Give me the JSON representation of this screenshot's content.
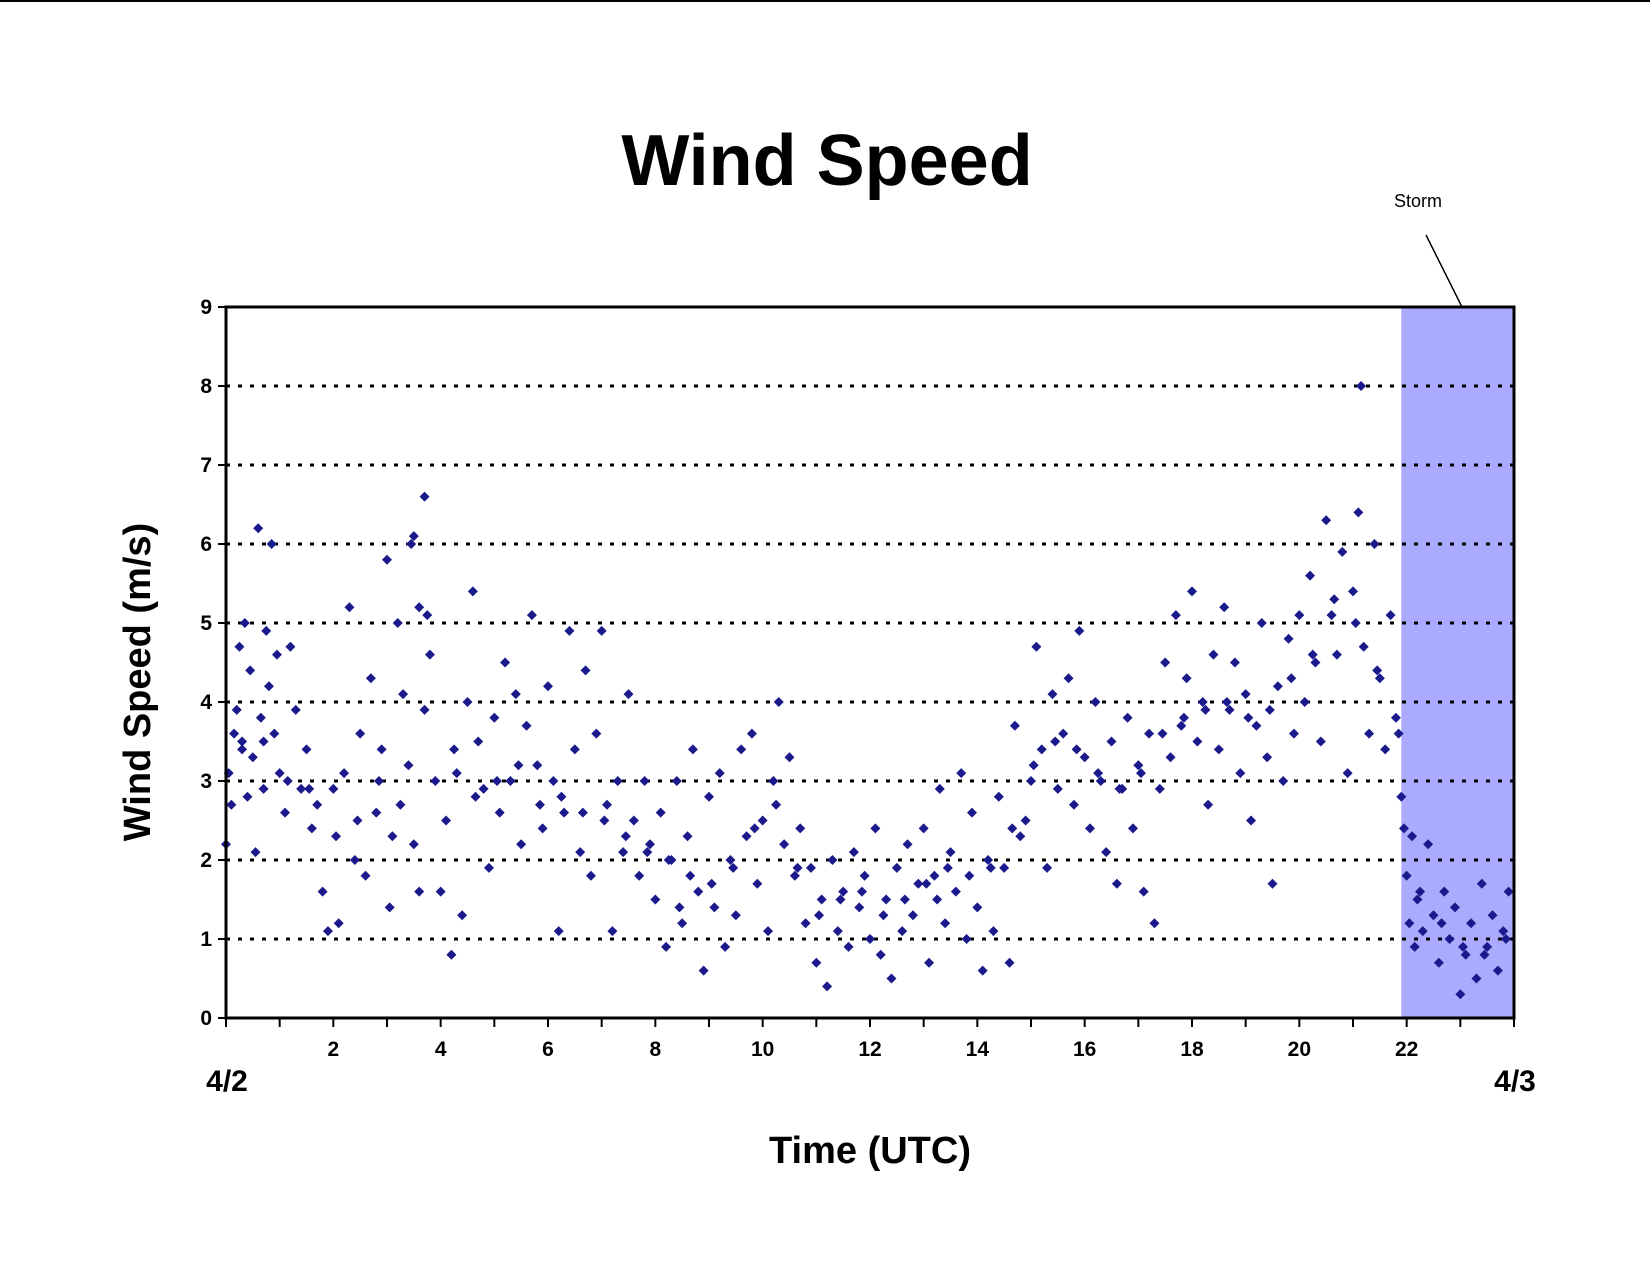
{
  "chart_data": {
    "type": "scatter",
    "title": "Wind Speed",
    "xlabel": "Time (UTC)",
    "ylabel": "Wind Speed (m/s)",
    "xlim": [
      0,
      24
    ],
    "ylim": [
      0,
      9
    ],
    "x_ticks": [
      2,
      4,
      6,
      8,
      10,
      12,
      14,
      16,
      18,
      20,
      22
    ],
    "x_tick_labels": [
      "2",
      "4",
      "6",
      "8",
      "10",
      "12",
      "14",
      "16",
      "18",
      "20",
      "22"
    ],
    "y_ticks": [
      0,
      1,
      2,
      3,
      4,
      5,
      6,
      7,
      8,
      9
    ],
    "y_tick_labels": [
      "0",
      "1",
      "2",
      "3",
      "4",
      "5",
      "6",
      "7",
      "8",
      "9"
    ],
    "date_labels": {
      "start": "4/2",
      "end": "4/3"
    },
    "grid": "horizontal dotted",
    "marker": "diamond",
    "marker_color": "#1a1a8c",
    "annotation": {
      "text": "Storm",
      "x_start": 21.9,
      "x_end": 24,
      "color": "#aaaaff"
    },
    "series": [
      {
        "points": [
          [
            0.0,
            2.2
          ],
          [
            0.05,
            3.1
          ],
          [
            0.1,
            2.7
          ],
          [
            0.15,
            3.6
          ],
          [
            0.2,
            3.9
          ],
          [
            0.25,
            4.7
          ],
          [
            0.3,
            3.5
          ],
          [
            0.35,
            5.0
          ],
          [
            0.4,
            2.8
          ],
          [
            0.45,
            4.4
          ],
          [
            0.5,
            3.3
          ],
          [
            0.55,
            2.1
          ],
          [
            0.6,
            6.2
          ],
          [
            0.65,
            3.8
          ],
          [
            0.7,
            2.9
          ],
          [
            0.75,
            4.9
          ],
          [
            0.8,
            4.2
          ],
          [
            0.85,
            6.0
          ],
          [
            0.9,
            3.6
          ],
          [
            0.95,
            4.6
          ],
          [
            1.0,
            3.1
          ],
          [
            1.1,
            2.6
          ],
          [
            1.2,
            4.7
          ],
          [
            1.3,
            3.9
          ],
          [
            1.4,
            2.9
          ],
          [
            1.5,
            3.4
          ],
          [
            1.6,
            2.4
          ],
          [
            1.7,
            2.7
          ],
          [
            1.8,
            1.6
          ],
          [
            1.9,
            1.1
          ],
          [
            2.0,
            2.9
          ],
          [
            2.1,
            1.2
          ],
          [
            2.2,
            3.1
          ],
          [
            2.3,
            5.2
          ],
          [
            2.4,
            2.0
          ],
          [
            2.5,
            3.6
          ],
          [
            2.6,
            1.8
          ],
          [
            2.7,
            4.3
          ],
          [
            2.8,
            2.6
          ],
          [
            2.9,
            3.4
          ],
          [
            3.0,
            5.8
          ],
          [
            3.05,
            1.4
          ],
          [
            3.1,
            2.3
          ],
          [
            3.2,
            5.0
          ],
          [
            3.3,
            4.1
          ],
          [
            3.4,
            3.2
          ],
          [
            3.5,
            2.2
          ],
          [
            3.6,
            5.2
          ],
          [
            3.7,
            3.9
          ],
          [
            3.8,
            4.6
          ],
          [
            3.45,
            6.0
          ],
          [
            3.5,
            6.1
          ],
          [
            3.6,
            1.6
          ],
          [
            3.7,
            6.6
          ],
          [
            3.75,
            5.1
          ],
          [
            3.9,
            3.0
          ],
          [
            4.0,
            1.6
          ],
          [
            4.1,
            2.5
          ],
          [
            4.2,
            0.8
          ],
          [
            4.3,
            3.1
          ],
          [
            4.4,
            1.3
          ],
          [
            4.5,
            4.0
          ],
          [
            4.6,
            5.4
          ],
          [
            4.7,
            3.5
          ],
          [
            4.8,
            2.9
          ],
          [
            4.9,
            1.9
          ],
          [
            5.0,
            3.8
          ],
          [
            5.1,
            2.6
          ],
          [
            5.2,
            4.5
          ],
          [
            5.3,
            3.0
          ],
          [
            5.4,
            4.1
          ],
          [
            5.5,
            2.2
          ],
          [
            5.6,
            3.7
          ],
          [
            5.7,
            5.1
          ],
          [
            5.8,
            3.2
          ],
          [
            5.9,
            2.4
          ],
          [
            6.0,
            4.2
          ],
          [
            6.1,
            3.0
          ],
          [
            6.2,
            1.1
          ],
          [
            6.3,
            2.6
          ],
          [
            6.4,
            4.9
          ],
          [
            6.5,
            3.4
          ],
          [
            6.6,
            2.1
          ],
          [
            6.7,
            4.4
          ],
          [
            6.8,
            1.8
          ],
          [
            6.9,
            3.6
          ],
          [
            7.0,
            4.9
          ],
          [
            7.1,
            2.7
          ],
          [
            7.2,
            1.1
          ],
          [
            7.3,
            3.0
          ],
          [
            7.4,
            2.1
          ],
          [
            7.5,
            4.1
          ],
          [
            7.6,
            2.5
          ],
          [
            7.7,
            1.8
          ],
          [
            7.8,
            3.0
          ],
          [
            7.9,
            2.2
          ],
          [
            8.0,
            1.5
          ],
          [
            8.1,
            2.6
          ],
          [
            8.2,
            0.9
          ],
          [
            8.3,
            2.0
          ],
          [
            8.4,
            3.0
          ],
          [
            8.5,
            1.2
          ],
          [
            8.6,
            2.3
          ],
          [
            8.7,
            3.4
          ],
          [
            8.8,
            1.6
          ],
          [
            8.9,
            0.6
          ],
          [
            9.0,
            2.8
          ],
          [
            9.1,
            1.4
          ],
          [
            9.2,
            3.1
          ],
          [
            9.3,
            0.9
          ],
          [
            9.4,
            2.0
          ],
          [
            9.5,
            1.3
          ],
          [
            9.6,
            3.4
          ],
          [
            9.7,
            2.3
          ],
          [
            9.8,
            3.6
          ],
          [
            9.9,
            1.7
          ],
          [
            10.0,
            2.5
          ],
          [
            10.1,
            1.1
          ],
          [
            10.2,
            3.0
          ],
          [
            10.3,
            4.0
          ],
          [
            10.4,
            2.2
          ],
          [
            10.5,
            3.3
          ],
          [
            10.6,
            1.8
          ],
          [
            10.7,
            2.4
          ],
          [
            10.8,
            1.2
          ],
          [
            10.9,
            1.9
          ],
          [
            11.0,
            0.7
          ],
          [
            11.1,
            1.5
          ],
          [
            11.2,
            0.4
          ],
          [
            11.3,
            2.0
          ],
          [
            11.4,
            1.1
          ],
          [
            11.5,
            1.6
          ],
          [
            11.6,
            0.9
          ],
          [
            11.7,
            2.1
          ],
          [
            11.8,
            1.4
          ],
          [
            11.9,
            1.8
          ],
          [
            12.0,
            1.0
          ],
          [
            12.1,
            2.4
          ],
          [
            12.2,
            0.8
          ],
          [
            12.3,
            1.5
          ],
          [
            12.4,
            0.5
          ],
          [
            12.5,
            1.9
          ],
          [
            12.6,
            1.1
          ],
          [
            12.7,
            2.2
          ],
          [
            12.8,
            1.3
          ],
          [
            12.9,
            1.7
          ],
          [
            13.0,
            2.4
          ],
          [
            13.1,
            0.7
          ],
          [
            13.2,
            1.8
          ],
          [
            13.3,
            2.9
          ],
          [
            13.4,
            1.2
          ],
          [
            13.5,
            2.1
          ],
          [
            13.6,
            1.6
          ],
          [
            13.7,
            3.1
          ],
          [
            13.8,
            1.0
          ],
          [
            13.9,
            2.6
          ],
          [
            14.0,
            1.4
          ],
          [
            14.1,
            0.6
          ],
          [
            14.2,
            2.0
          ],
          [
            14.3,
            1.1
          ],
          [
            14.4,
            2.8
          ],
          [
            14.5,
            1.9
          ],
          [
            14.6,
            0.7
          ],
          [
            14.7,
            3.7
          ],
          [
            14.8,
            2.3
          ],
          [
            14.9,
            2.5
          ],
          [
            15.0,
            3.0
          ],
          [
            15.1,
            4.7
          ],
          [
            15.2,
            3.4
          ],
          [
            15.3,
            1.9
          ],
          [
            15.4,
            4.1
          ],
          [
            15.5,
            2.9
          ],
          [
            15.6,
            3.6
          ],
          [
            15.7,
            4.3
          ],
          [
            15.8,
            2.7
          ],
          [
            15.9,
            4.9
          ],
          [
            16.0,
            3.3
          ],
          [
            16.1,
            2.4
          ],
          [
            16.2,
            4.0
          ],
          [
            16.3,
            3.0
          ],
          [
            16.4,
            2.1
          ],
          [
            16.5,
            3.5
          ],
          [
            16.6,
            1.7
          ],
          [
            16.7,
            2.9
          ],
          [
            16.8,
            3.8
          ],
          [
            16.9,
            2.4
          ],
          [
            17.0,
            3.2
          ],
          [
            17.1,
            1.6
          ],
          [
            17.2,
            3.6
          ],
          [
            17.3,
            1.2
          ],
          [
            17.4,
            2.9
          ],
          [
            17.5,
            4.5
          ],
          [
            17.6,
            3.3
          ],
          [
            17.7,
            5.1
          ],
          [
            17.8,
            3.7
          ],
          [
            17.9,
            4.3
          ],
          [
            18.0,
            5.4
          ],
          [
            18.1,
            3.5
          ],
          [
            18.2,
            4.0
          ],
          [
            18.3,
            2.7
          ],
          [
            18.4,
            4.6
          ],
          [
            18.5,
            3.4
          ],
          [
            18.6,
            5.2
          ],
          [
            18.7,
            3.9
          ],
          [
            18.8,
            4.5
          ],
          [
            18.9,
            3.1
          ],
          [
            19.0,
            4.1
          ],
          [
            19.1,
            2.5
          ],
          [
            19.2,
            3.7
          ],
          [
            19.3,
            5.0
          ],
          [
            19.4,
            3.3
          ],
          [
            19.5,
            1.7
          ],
          [
            19.6,
            4.2
          ],
          [
            19.7,
            3.0
          ],
          [
            19.8,
            4.8
          ],
          [
            19.9,
            3.6
          ],
          [
            20.0,
            5.1
          ],
          [
            20.1,
            4.0
          ],
          [
            20.2,
            5.6
          ],
          [
            20.3,
            4.5
          ],
          [
            20.4,
            3.5
          ],
          [
            20.5,
            6.3
          ],
          [
            20.6,
            5.1
          ],
          [
            20.7,
            4.6
          ],
          [
            20.8,
            5.9
          ],
          [
            20.9,
            3.1
          ],
          [
            21.0,
            5.4
          ],
          [
            21.1,
            6.4
          ],
          [
            21.15,
            8.0
          ],
          [
            21.2,
            4.7
          ],
          [
            21.3,
            3.6
          ],
          [
            21.4,
            6.0
          ],
          [
            21.5,
            4.3
          ],
          [
            21.6,
            3.4
          ],
          [
            21.7,
            5.1
          ],
          [
            21.8,
            3.8
          ],
          [
            21.9,
            2.8
          ],
          [
            21.95,
            2.4
          ],
          [
            22.0,
            1.8
          ],
          [
            22.05,
            1.2
          ],
          [
            22.1,
            2.3
          ],
          [
            22.15,
            0.9
          ],
          [
            22.2,
            1.5
          ],
          [
            22.3,
            1.1
          ],
          [
            22.4,
            2.2
          ],
          [
            22.5,
            1.3
          ],
          [
            22.6,
            0.7
          ],
          [
            22.7,
            1.6
          ],
          [
            22.8,
            1.0
          ],
          [
            22.9,
            1.4
          ],
          [
            23.0,
            0.3
          ],
          [
            23.1,
            0.8
          ],
          [
            23.2,
            1.2
          ],
          [
            23.3,
            0.5
          ],
          [
            23.4,
            1.7
          ],
          [
            23.5,
            0.9
          ],
          [
            23.6,
            1.3
          ],
          [
            23.7,
            0.6
          ],
          [
            23.8,
            1.1
          ],
          [
            23.9,
            1.6
          ],
          [
            0.3,
            3.4
          ],
          [
            0.7,
            3.5
          ],
          [
            1.15,
            3.0
          ],
          [
            1.55,
            2.9
          ],
          [
            2.05,
            2.3
          ],
          [
            2.45,
            2.5
          ],
          [
            2.85,
            3.0
          ],
          [
            3.25,
            2.7
          ],
          [
            4.25,
            3.4
          ],
          [
            4.65,
            2.8
          ],
          [
            5.05,
            3.0
          ],
          [
            5.45,
            3.2
          ],
          [
            5.85,
            2.7
          ],
          [
            6.25,
            2.8
          ],
          [
            6.65,
            2.6
          ],
          [
            7.05,
            2.5
          ],
          [
            7.45,
            2.3
          ],
          [
            7.85,
            2.1
          ],
          [
            8.25,
            2.0
          ],
          [
            8.65,
            1.8
          ],
          [
            9.05,
            1.7
          ],
          [
            9.45,
            1.9
          ],
          [
            9.85,
            2.4
          ],
          [
            10.25,
            2.7
          ],
          [
            10.65,
            1.9
          ],
          [
            11.05,
            1.3
          ],
          [
            11.45,
            1.5
          ],
          [
            11.85,
            1.6
          ],
          [
            12.25,
            1.3
          ],
          [
            12.65,
            1.5
          ],
          [
            13.05,
            1.7
          ],
          [
            13.45,
            1.9
          ],
          [
            13.85,
            1.8
          ],
          [
            14.25,
            1.9
          ],
          [
            14.65,
            2.4
          ],
          [
            15.05,
            3.2
          ],
          [
            15.45,
            3.5
          ],
          [
            15.85,
            3.4
          ],
          [
            16.25,
            3.1
          ],
          [
            16.65,
            2.9
          ],
          [
            17.05,
            3.1
          ],
          [
            17.45,
            3.6
          ],
          [
            17.85,
            3.8
          ],
          [
            18.25,
            3.9
          ],
          [
            18.65,
            4.0
          ],
          [
            19.05,
            3.8
          ],
          [
            19.45,
            3.9
          ],
          [
            19.85,
            4.3
          ],
          [
            20.25,
            4.6
          ],
          [
            20.65,
            5.3
          ],
          [
            21.05,
            5.0
          ],
          [
            21.45,
            4.4
          ],
          [
            21.85,
            3.6
          ],
          [
            22.25,
            1.6
          ],
          [
            22.65,
            1.2
          ],
          [
            23.05,
            0.9
          ],
          [
            23.45,
            0.8
          ],
          [
            23.85,
            1.0
          ],
          [
            13.25,
            1.5
          ],
          [
            8.45,
            1.4
          ]
        ]
      }
    ]
  }
}
